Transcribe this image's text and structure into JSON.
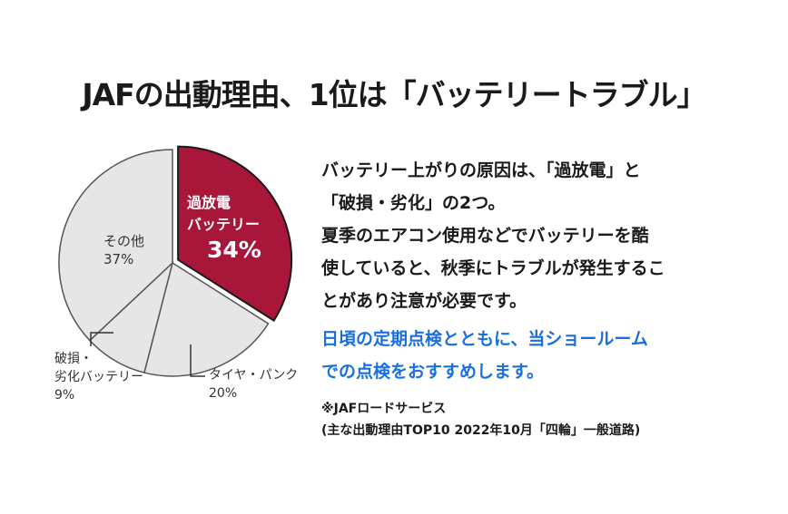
{
  "title": "JAFの出動理由、1位は「バッテリートラブル」",
  "chart_data": {
    "type": "pie",
    "slices": [
      {
        "name_line1": "過放電",
        "name_line2": "バッテリー",
        "value": 34,
        "value_label": "34%",
        "color": "#a8173a",
        "text_color": "#ffffff"
      },
      {
        "name_line1": "タイヤ・パンク",
        "name_line2": "",
        "value": 20,
        "value_label": "20%",
        "color": "#e6e6e6",
        "text_color": "#333333"
      },
      {
        "name_line1": "破損・",
        "name_line2": "劣化バッテリー",
        "value": 9,
        "value_label": "9%",
        "color": "#e6e6e6",
        "text_color": "#333333"
      },
      {
        "name_line1": "その他",
        "name_line2": "",
        "value": 37,
        "value_label": "37%",
        "color": "#e6e6e6",
        "text_color": "#333333"
      }
    ]
  },
  "description": {
    "lines": [
      "バッテリー上がりの原因は、「過放電」と",
      "「破損・劣化」の2つ。",
      "夏季のエアコン使用などでバッテリーを酷",
      "使していると、秋季にトラブルが発生するこ",
      "とがあり注意が必要です。"
    ],
    "highlight_lines": [
      "日頃の定期点検とともに、当ショールーム",
      "での点検をおすすめします。"
    ],
    "highlight_color": "#1a6fe0"
  },
  "note": {
    "source": "※JAFロードサービス",
    "detail": "(主な出動理由TOP10 2022年10月「四輪」一般道路)"
  }
}
